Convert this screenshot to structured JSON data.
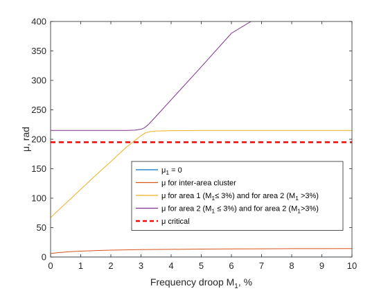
{
  "chart_data": {
    "type": "line",
    "xlabel": "Frequency droop M",
    "xlabel_sub": "1",
    "xlabel_suffix": ", %",
    "ylabel": "μ, rad",
    "xlim": [
      0,
      10
    ],
    "ylim": [
      0,
      400
    ],
    "x_ticks": [
      0,
      1,
      2,
      3,
      4,
      5,
      6,
      7,
      8,
      9,
      10
    ],
    "y_ticks": [
      0,
      50,
      100,
      150,
      200,
      250,
      300,
      350,
      400
    ],
    "grid": false,
    "legend_position": "bottom-right",
    "series": [
      {
        "name": "μ1 = 0",
        "legend": [
          {
            "t": "μ"
          },
          {
            "t": "1",
            "sub": true
          },
          {
            "t": " = 0"
          }
        ],
        "color": "#0072BD",
        "style": "solid",
        "x": [
          0,
          10
        ],
        "y": [
          0,
          0
        ]
      },
      {
        "name": "μ for inter-area cluster",
        "legend": [
          {
            "t": "μ for inter-area cluster"
          }
        ],
        "color": "#D95319",
        "style": "solid",
        "x": [
          0,
          0.25,
          0.5,
          0.75,
          1,
          1.5,
          2,
          2.5,
          3,
          4,
          5,
          6,
          7,
          8,
          9,
          10
        ],
        "y": [
          6,
          7.5,
          8.6,
          9.4,
          10,
          11,
          11.7,
          12.2,
          12.6,
          13.1,
          13.5,
          13.8,
          14,
          14.2,
          14.3,
          14.4
        ]
      },
      {
        "name": "μ for area 1 (M1 ≤ 3%) and for area 2 (M1 >3%)",
        "legend": [
          {
            "t": "μ for area 1 (M"
          },
          {
            "t": "1",
            "sub": true
          },
          {
            "t": "≤ 3%) and for area 2 (M"
          },
          {
            "t": "1",
            "sub": true
          },
          {
            "t": " >3%)"
          }
        ],
        "color": "#EDB120",
        "style": "solid",
        "x": [
          0,
          0.5,
          1,
          1.5,
          2,
          2.5,
          2.8,
          3.0,
          3.15,
          3.3,
          3.5,
          4,
          5,
          6,
          7,
          8,
          9,
          10
        ],
        "y": [
          67,
          91,
          115,
          139,
          162,
          186,
          198,
          206,
          211,
          213,
          214,
          214.5,
          215,
          215,
          215,
          215,
          215,
          215
        ]
      },
      {
        "name": "μ for area 2 (M1 ≤ 3%) and for area 2 (M1 >3%)",
        "legend": [
          {
            "t": "μ for area 2 (M"
          },
          {
            "t": "1",
            "sub": true
          },
          {
            "t": " ≤ 3%) and for area 2 (M"
          },
          {
            "t": "1",
            "sub": true
          },
          {
            "t": ">3%)"
          }
        ],
        "color": "#7E2F8E",
        "style": "solid",
        "x": [
          0,
          1,
          2,
          2.5,
          2.8,
          3.0,
          3.1,
          3.2,
          3.3,
          3.5,
          4,
          5,
          6,
          6.65
        ],
        "y": [
          215,
          215,
          215,
          215,
          215.5,
          217,
          219,
          223,
          228,
          239,
          267,
          323,
          380,
          400
        ]
      },
      {
        "name": "μ critical",
        "legend": [
          {
            "t": "μ critical"
          }
        ],
        "color": "#FF0000",
        "style": "dashed",
        "x": [
          0,
          10
        ],
        "y": [
          195,
          195
        ]
      }
    ]
  }
}
